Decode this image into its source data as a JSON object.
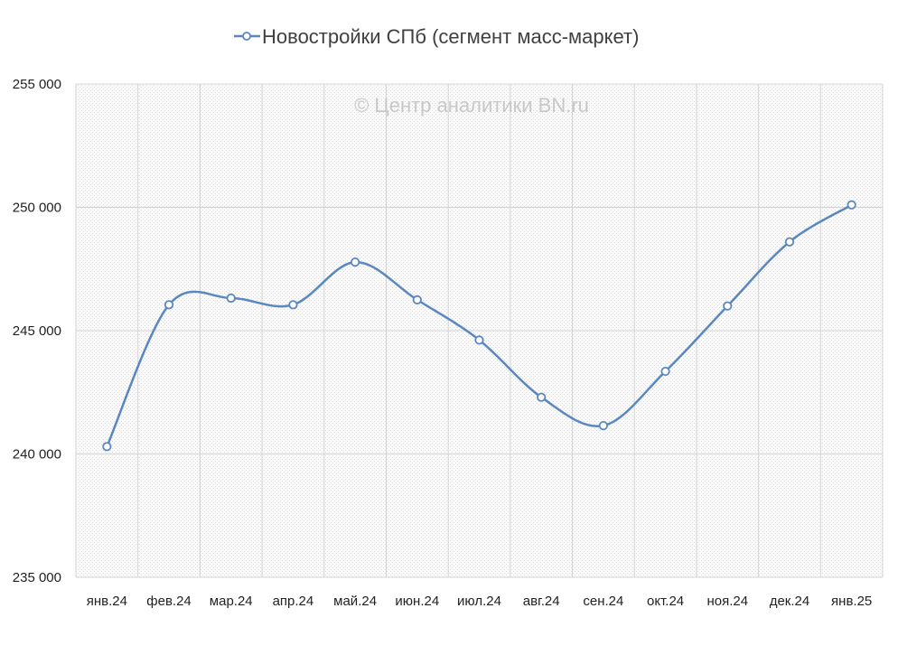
{
  "chart_data": {
    "type": "line",
    "title": "",
    "legend_position": "top",
    "watermark": "© Центр аналитики BN.ru",
    "xlabel": "",
    "ylabel": "",
    "categories": [
      "янв.24",
      "фев.24",
      "мар.24",
      "апр.24",
      "май.24",
      "июн.24",
      "июл.24",
      "авг.24",
      "сен.24",
      "окт.24",
      "ноя.24",
      "дек.24",
      "янв.25"
    ],
    "ylim": [
      235000,
      255000
    ],
    "yticks": [
      235000,
      240000,
      245000,
      250000,
      255000
    ],
    "ytick_labels": [
      "235 000",
      "240 000",
      "245 000",
      "250 000",
      "255 000"
    ],
    "grid": true,
    "smooth": true,
    "series": [
      {
        "name": "Новостройки СПб (сегмент масс-маркет)",
        "color": "#5b87c1",
        "values": [
          240300,
          246050,
          246320,
          246050,
          247780,
          246250,
          244620,
          242300,
          241150,
          243350,
          246000,
          248600,
          250100
        ]
      }
    ]
  }
}
